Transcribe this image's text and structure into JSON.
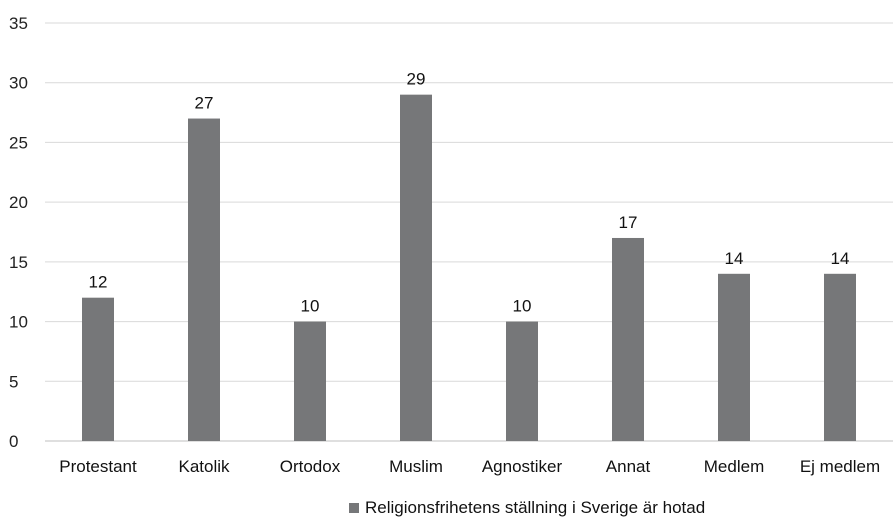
{
  "chart_data": {
    "type": "bar",
    "categories": [
      "Protestant",
      "Katolik",
      "Ortodox",
      "Muslim",
      "Agnostiker",
      "Annat",
      "Medlem",
      "Ej medlem"
    ],
    "series": [
      {
        "name": "Religionsfrihetens ställning i Sverige är hotad",
        "values": [
          12,
          27,
          10,
          29,
          10,
          17,
          14,
          14
        ],
        "color": "#767779"
      }
    ],
    "yticks": [
      "0",
      "5",
      "10",
      "15",
      "20",
      "25",
      "30",
      "35"
    ],
    "ylim": [
      0,
      35
    ],
    "grid": true,
    "legend_position": "bottom"
  }
}
